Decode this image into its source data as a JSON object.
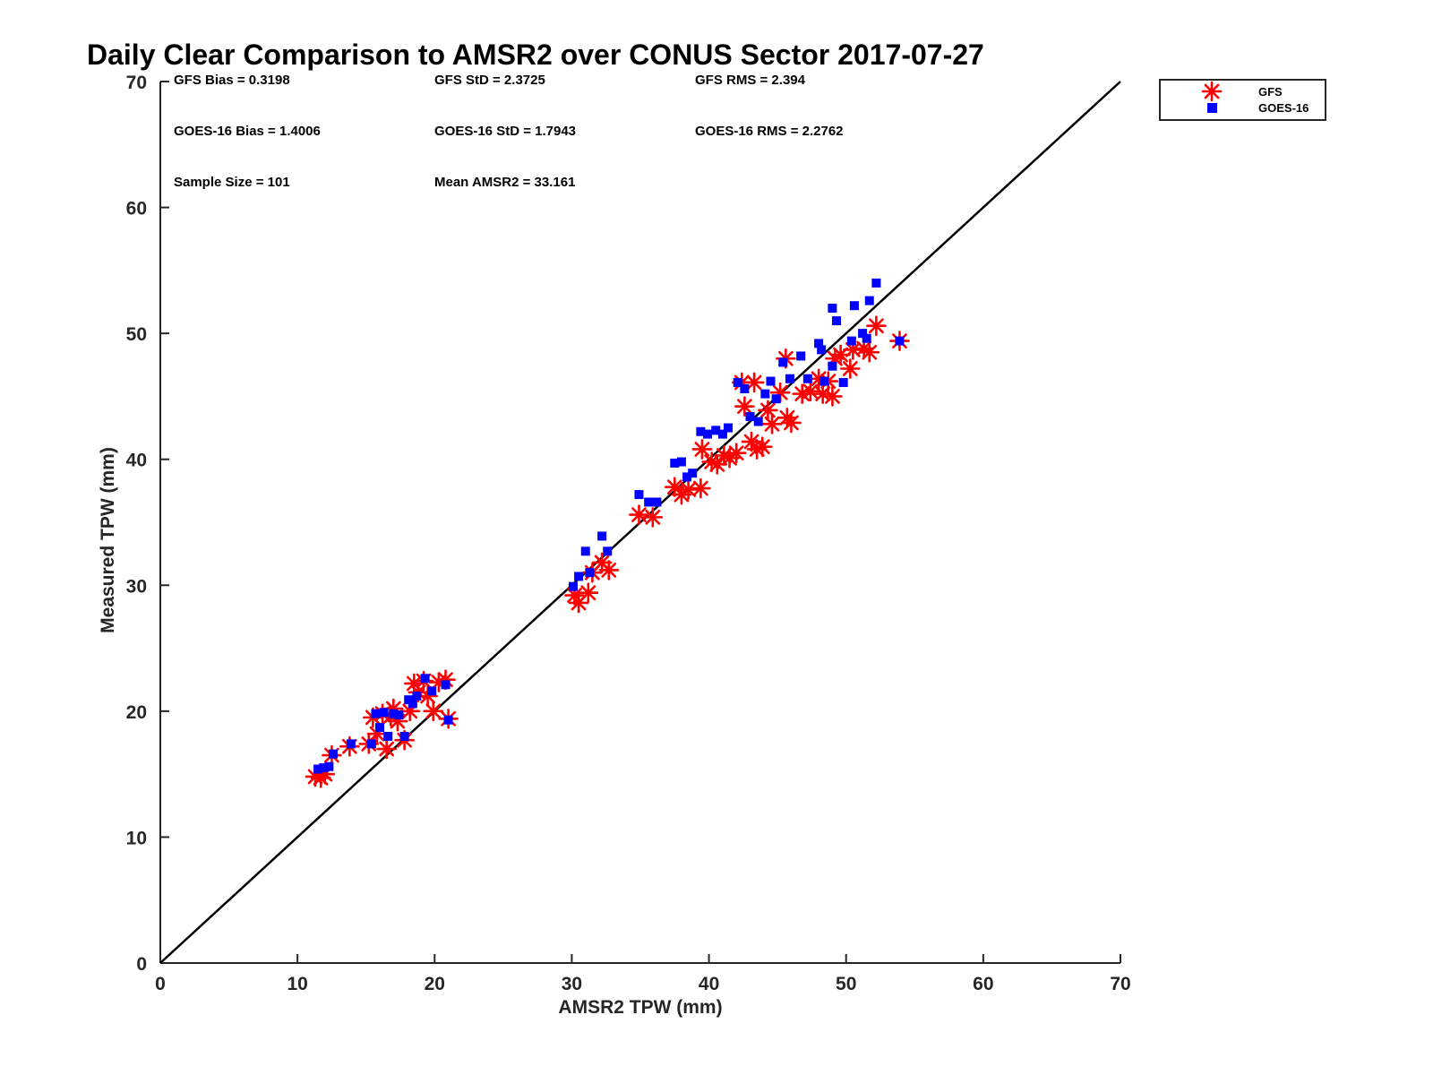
{
  "chart_data": {
    "type": "scatter",
    "title": "Daily Clear Comparison to AMSR2 over CONUS Sector 2017-07-27",
    "xlabel": "AMSR2 TPW (mm)",
    "ylabel": "Measured TPW (mm)",
    "xlim": [
      0,
      70
    ],
    "ylim": [
      0,
      70
    ],
    "xticks": [
      0,
      10,
      20,
      30,
      40,
      50,
      60,
      70
    ],
    "yticks": [
      0,
      10,
      20,
      30,
      40,
      50,
      60,
      70
    ],
    "grid": false,
    "legend_position": "outside top-right",
    "reference_line": {
      "type": "one-to-one",
      "color": "#000000"
    },
    "stats": {
      "gfs_bias": "GFS Bias = 0.3198",
      "gfs_std": "GFS StD = 2.3725",
      "gfs_rms": "GFS RMS = 2.394",
      "goes_bias": "GOES-16 Bias = 1.4006",
      "goes_std": "GOES-16 StD = 1.7943",
      "goes_rms": "GOES-16 RMS = 2.2762",
      "sample_size": "Sample Size = 101",
      "mean_amsr2": "Mean AMSR2 = 33.161"
    },
    "series": [
      {
        "name": "GFS",
        "color": "#ff0000",
        "marker": "asterisk",
        "points": [
          [
            11.3,
            14.8
          ],
          [
            11.7,
            14.7
          ],
          [
            12.0,
            15.0
          ],
          [
            12.5,
            16.5
          ],
          [
            13.8,
            17.2
          ],
          [
            15.2,
            17.4
          ],
          [
            15.5,
            19.5
          ],
          [
            15.8,
            18.2
          ],
          [
            16.2,
            19.8
          ],
          [
            16.5,
            17.0
          ],
          [
            16.8,
            19.6
          ],
          [
            17.0,
            20.2
          ],
          [
            17.3,
            19.2
          ],
          [
            17.8,
            17.7
          ],
          [
            18.2,
            20.0
          ],
          [
            18.5,
            22.2
          ],
          [
            18.8,
            21.5
          ],
          [
            19.2,
            22.4
          ],
          [
            19.5,
            21.2
          ],
          [
            19.9,
            20.0
          ],
          [
            20.3,
            22.3
          ],
          [
            20.8,
            22.5
          ],
          [
            21.0,
            19.4
          ],
          [
            30.2,
            29.2
          ],
          [
            30.5,
            28.6
          ],
          [
            31.2,
            29.4
          ],
          [
            31.5,
            31.0
          ],
          [
            32.2,
            31.8
          ],
          [
            32.7,
            31.2
          ],
          [
            34.9,
            35.6
          ],
          [
            35.9,
            35.4
          ],
          [
            37.5,
            37.8
          ],
          [
            38.0,
            37.2
          ],
          [
            38.5,
            37.6
          ],
          [
            39.4,
            37.7
          ],
          [
            39.5,
            40.8
          ],
          [
            40.2,
            39.8
          ],
          [
            40.6,
            39.6
          ],
          [
            41.1,
            40.3
          ],
          [
            41.5,
            40.1
          ],
          [
            42.0,
            40.5
          ],
          [
            42.4,
            46.1
          ],
          [
            42.6,
            44.2
          ],
          [
            43.1,
            41.4
          ],
          [
            43.3,
            46.1
          ],
          [
            43.5,
            40.8
          ],
          [
            43.9,
            41.0
          ],
          [
            44.3,
            43.9
          ],
          [
            44.6,
            42.8
          ],
          [
            45.2,
            45.3
          ],
          [
            45.6,
            48.0
          ],
          [
            45.7,
            43.3
          ],
          [
            46.0,
            42.9
          ],
          [
            46.8,
            45.2
          ],
          [
            47.4,
            45.4
          ],
          [
            48.0,
            46.4
          ],
          [
            48.3,
            45.2
          ],
          [
            48.7,
            46.2
          ],
          [
            49.0,
            45.0
          ],
          [
            49.2,
            48.0
          ],
          [
            49.6,
            48.3
          ],
          [
            50.3,
            47.2
          ],
          [
            50.5,
            48.7
          ],
          [
            51.3,
            48.8
          ],
          [
            51.7,
            48.5
          ],
          [
            52.2,
            50.6
          ],
          [
            53.9,
            49.4
          ]
        ]
      },
      {
        "name": "GOES-16",
        "color": "#0000ff",
        "marker": "square",
        "points": [
          [
            11.5,
            15.4
          ],
          [
            11.9,
            15.5
          ],
          [
            12.3,
            15.6
          ],
          [
            12.6,
            16.6
          ],
          [
            13.9,
            17.4
          ],
          [
            15.4,
            17.4
          ],
          [
            15.7,
            19.8
          ],
          [
            16.0,
            18.7
          ],
          [
            16.3,
            19.9
          ],
          [
            16.6,
            18.0
          ],
          [
            17.0,
            19.8
          ],
          [
            17.4,
            19.7
          ],
          [
            17.8,
            18.0
          ],
          [
            18.1,
            20.9
          ],
          [
            18.4,
            20.6
          ],
          [
            18.7,
            21.2
          ],
          [
            19.3,
            22.6
          ],
          [
            19.8,
            21.6
          ],
          [
            20.8,
            22.1
          ],
          [
            21.0,
            19.3
          ],
          [
            30.1,
            29.9
          ],
          [
            30.5,
            30.7
          ],
          [
            31.0,
            32.7
          ],
          [
            31.3,
            31.0
          ],
          [
            32.2,
            33.9
          ],
          [
            32.6,
            32.7
          ],
          [
            34.9,
            37.2
          ],
          [
            35.6,
            36.6
          ],
          [
            36.2,
            36.6
          ],
          [
            37.5,
            39.7
          ],
          [
            38.0,
            39.8
          ],
          [
            38.4,
            38.6
          ],
          [
            38.8,
            38.9
          ],
          [
            39.4,
            42.2
          ],
          [
            39.9,
            42.0
          ],
          [
            40.5,
            42.3
          ],
          [
            41.0,
            42.0
          ],
          [
            41.4,
            42.5
          ],
          [
            42.1,
            46.1
          ],
          [
            42.6,
            45.6
          ],
          [
            43.0,
            43.4
          ],
          [
            43.6,
            43.0
          ],
          [
            44.1,
            45.2
          ],
          [
            44.5,
            46.2
          ],
          [
            44.9,
            44.8
          ],
          [
            45.4,
            47.7
          ],
          [
            45.9,
            46.4
          ],
          [
            46.7,
            48.2
          ],
          [
            47.2,
            46.4
          ],
          [
            48.0,
            49.2
          ],
          [
            48.2,
            48.7
          ],
          [
            48.4,
            46.2
          ],
          [
            49.0,
            47.4
          ],
          [
            49.0,
            52.0
          ],
          [
            49.3,
            51.0
          ],
          [
            49.8,
            46.1
          ],
          [
            50.4,
            49.4
          ],
          [
            50.6,
            52.2
          ],
          [
            51.2,
            50.0
          ],
          [
            51.5,
            49.6
          ],
          [
            51.7,
            52.6
          ],
          [
            52.2,
            54.0
          ],
          [
            53.9,
            49.4
          ]
        ]
      }
    ]
  }
}
